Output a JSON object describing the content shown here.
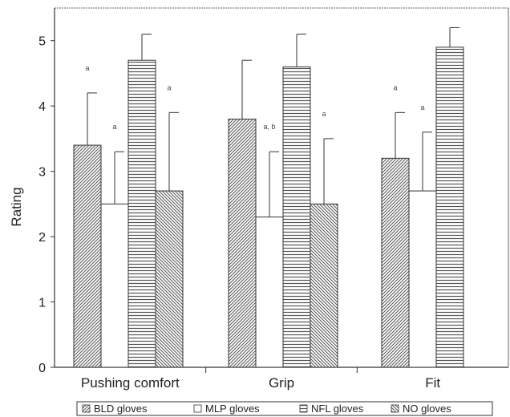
{
  "chart_data": {
    "type": "bar",
    "title": "",
    "xlabel": "",
    "ylabel": "Rating",
    "ylim": [
      0,
      5.5
    ],
    "yticks": [
      "0",
      "1",
      "2",
      "3",
      "4",
      "5"
    ],
    "categories": [
      "Pushing comfort",
      "Grip",
      "Fit"
    ],
    "series": [
      {
        "name": "BLD gloves",
        "values": [
          3.4,
          3.8,
          3.2
        ],
        "error": [
          0.8,
          0.9,
          0.7
        ],
        "sig": [
          "a",
          "",
          "a"
        ],
        "pattern": "diag"
      },
      {
        "name": "MLP gloves",
        "values": [
          2.5,
          2.3,
          2.7
        ],
        "error": [
          0.8,
          1.0,
          0.9
        ],
        "sig": [
          "a",
          "a, b",
          "a"
        ],
        "pattern": "none"
      },
      {
        "name": "NFL gloves",
        "values": [
          4.7,
          4.6,
          4.9
        ],
        "error": [
          0.4,
          0.5,
          0.3
        ],
        "sig": [
          "",
          "",
          ""
        ],
        "pattern": "horiz"
      },
      {
        "name": "NO gloves",
        "values": [
          2.7,
          2.5,
          null
        ],
        "error": [
          1.2,
          1.0,
          null
        ],
        "sig": [
          "a",
          "a",
          ""
        ],
        "pattern": "diag2"
      }
    ],
    "grid": false,
    "legend_position": "bottom"
  }
}
